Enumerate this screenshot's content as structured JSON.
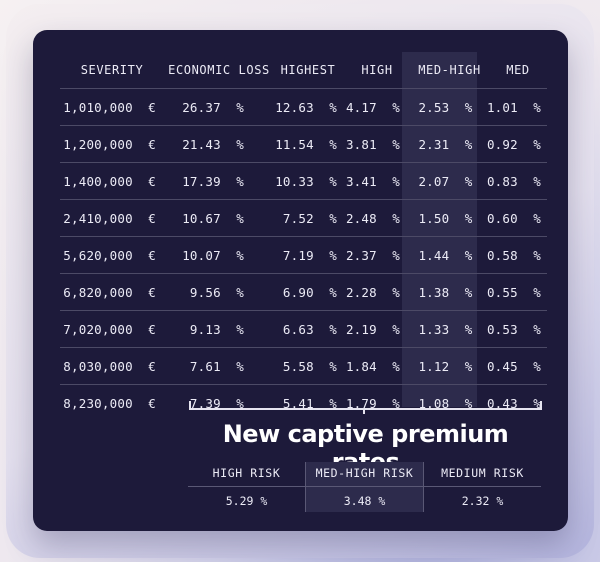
{
  "table": {
    "headers": [
      "SEVERITY",
      "ECONOMIC LOSS",
      "HIGHEST",
      "HIGH",
      "MED-HIGH",
      "MED"
    ],
    "rows": [
      [
        "1,010,000  €",
        "26.37  %",
        "12.63  %",
        "4.17  %",
        "2.53  %",
        "1.01  %"
      ],
      [
        "1,200,000  €",
        "21.43  %",
        "11.54  %",
        "3.81  %",
        "2.31  %",
        "0.92  %"
      ],
      [
        "1,400,000  €",
        "17.39  %",
        "10.33  %",
        "3.41  %",
        "2.07  %",
        "0.83  %"
      ],
      [
        "2,410,000  €",
        "10.67  %",
        "7.52  %",
        "2.48  %",
        "1.50  %",
        "0.60  %"
      ],
      [
        "5,620,000  €",
        "10.07  %",
        "7.19  %",
        "2.37  %",
        "1.44  %",
        "0.58  %"
      ],
      [
        "6,820,000  €",
        "9.56  %",
        "6.90  %",
        "2.28  %",
        "1.38  %",
        "0.55  %"
      ],
      [
        "7,020,000  €",
        "9.13  %",
        "6.63  %",
        "2.19  %",
        "1.33  %",
        "0.53  %"
      ],
      [
        "8,030,000  €",
        "7.61  %",
        "5.58  %",
        "1.84  %",
        "1.12  %",
        "0.45  %"
      ],
      [
        "8,230,000  €",
        "7.39  %",
        "5.41  %",
        "1.79  %",
        "1.08  %",
        "0.43  %"
      ]
    ]
  },
  "headline": "New captive premium rates",
  "summary": [
    {
      "label": "HIGH RISK",
      "value": "5.29  %"
    },
    {
      "label": "MED-HIGH RISK",
      "value": "3.48  %"
    },
    {
      "label": "MEDIUM RISK",
      "value": "2.32  %"
    }
  ],
  "colors": {
    "card_background": "#1d1a3a",
    "highlight_column": "#2d2b4c",
    "text": "#ecebf6"
  }
}
